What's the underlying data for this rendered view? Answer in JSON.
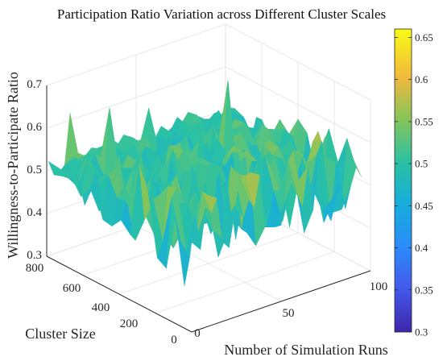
{
  "chart_data": {
    "type": "surface",
    "title": "Participation Ratio Variation across Different Cluster Scales",
    "xlabel": "Number of Simulation Runs",
    "ylabel": "Cluster Size",
    "zlabel": "Willingness-to-Participate Ratio",
    "xlim": [
      0,
      100
    ],
    "ylim": [
      0,
      800
    ],
    "zlim": [
      0.3,
      0.7
    ],
    "x_ticks": [
      "0",
      "50",
      "100"
    ],
    "y_ticks": [
      "0",
      "200",
      "400",
      "600",
      "800"
    ],
    "z_ticks": [
      "0.3",
      "0.4",
      "0.5",
      "0.6",
      "0.7"
    ],
    "colorbar": {
      "range": [
        0.3,
        0.66
      ],
      "ticks": [
        "0.3",
        "0.35",
        "0.4",
        "0.45",
        "0.5",
        "0.55",
        "0.6",
        "0.65"
      ],
      "colormap": "parula"
    },
    "grid": true,
    "surface_summary": {
      "runs": [
        1,
        100
      ],
      "cluster_sizes": [
        50,
        800
      ],
      "value_range": [
        0.3,
        0.66
      ],
      "typical_value": 0.5
    }
  }
}
